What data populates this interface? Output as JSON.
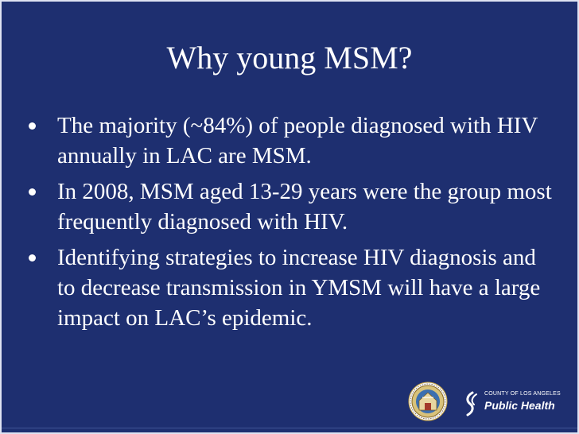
{
  "slide": {
    "title": "Why young MSM?",
    "bullets": [
      "The majority (~84%) of people diagnosed with HIV annually in LAC are MSM.",
      "In 2008, MSM aged 13-29 years were the group most frequently diagnosed with HIV.",
      "Identifying strategies to increase HIV diagnosis and to decrease transmission in YMSM will have a large impact on LAC’s epidemic."
    ]
  },
  "footer": {
    "logo_county": "COUNTY OF LOS ANGELES",
    "logo_name": "Public Health",
    "seal_icon": "county-seal-icon",
    "logo_icon": "public-health-mark-icon"
  },
  "colors": {
    "background": "#1e2f70",
    "text": "#ffffff"
  }
}
